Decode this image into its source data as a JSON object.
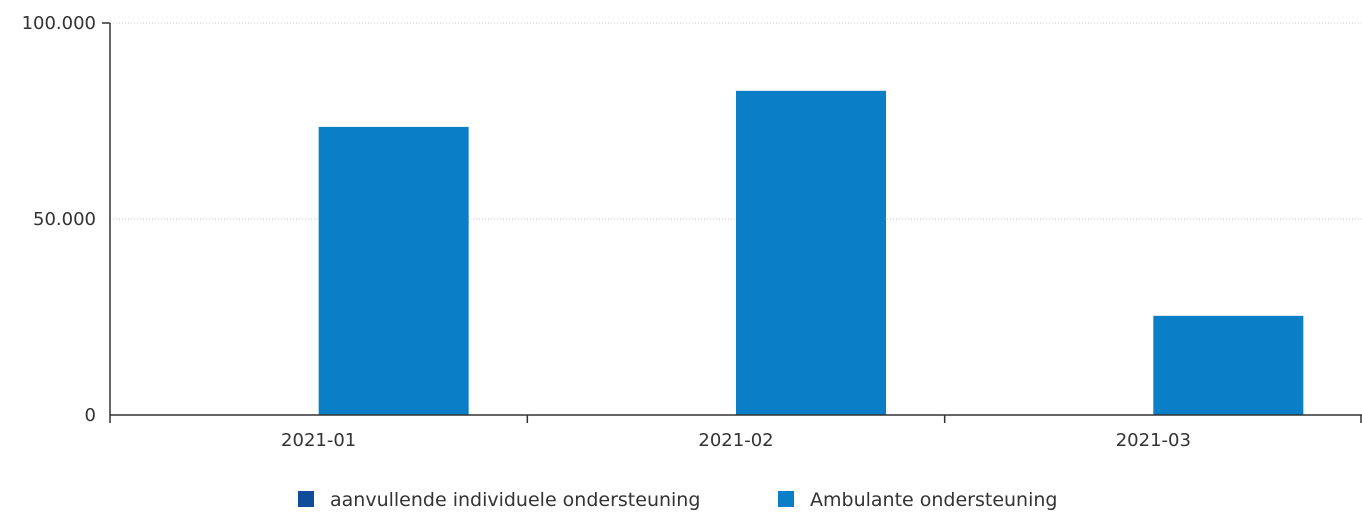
{
  "chart_data": {
    "type": "bar",
    "title": "",
    "xlabel": "",
    "ylabel": "",
    "categories": [
      "2021-01",
      "2021-02",
      "2021-03"
    ],
    "ylim": [
      0,
      100000
    ],
    "yticks": [
      0,
      50000,
      100000
    ],
    "ytick_labels": [
      "0",
      "50.000",
      "100.000"
    ],
    "grid": true,
    "legend_position": "bottom-center",
    "series": [
      {
        "name": "aanvullende individuele ondersteuning",
        "color": "#0f4c9a",
        "values": [
          0,
          0,
          0
        ]
      },
      {
        "name": "Ambulante ondersteuning",
        "color": "#0a7ec6",
        "values": [
          73500,
          82700,
          25300
        ]
      }
    ]
  }
}
